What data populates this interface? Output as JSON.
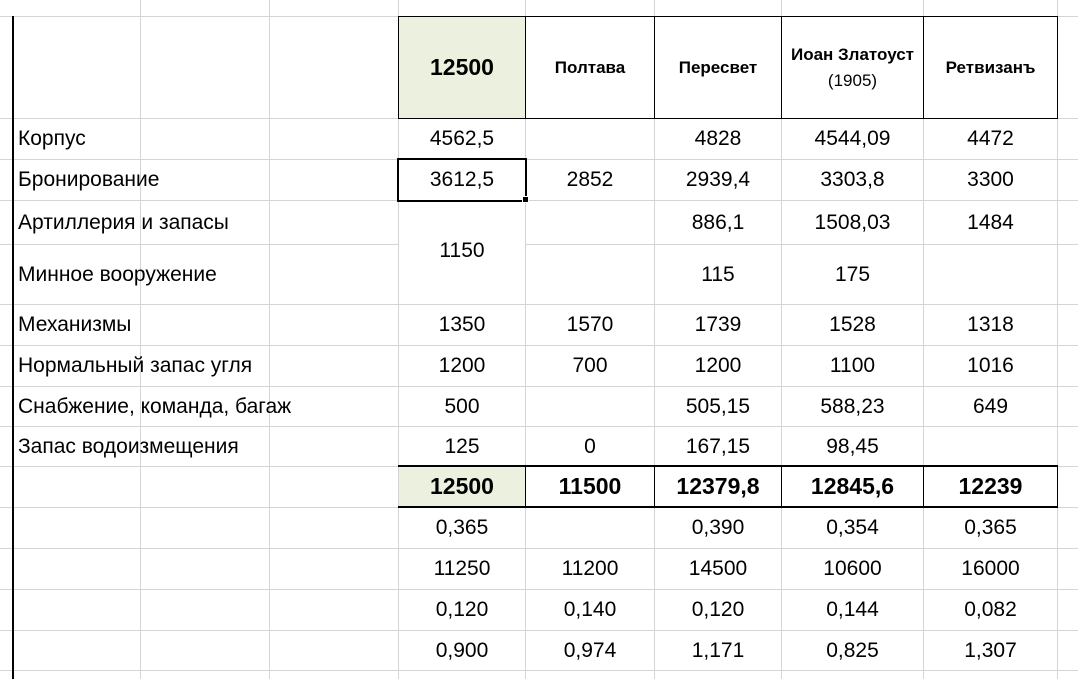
{
  "colors": {
    "gridline": "#d4d4d4",
    "highlight": "#ebf1de",
    "border": "#000000",
    "text": "#000000"
  },
  "header": {
    "col1": "12500",
    "col2": "Полтава",
    "col3": "Пересвет",
    "col4": "Иоан Златоуст",
    "col4_sub": "(1905)",
    "col5": "Ретвизанъ"
  },
  "rows": [
    {
      "label": "Корпус",
      "values": [
        "4562,5",
        "",
        "4828",
        "4544,09",
        "4472"
      ]
    },
    {
      "label": "Бронирование",
      "values": [
        "3612,5",
        "2852",
        "2939,4",
        "3303,8",
        "3300"
      ]
    },
    {
      "label": "Артиллерия и запасы",
      "values": [
        "",
        "",
        "886,1",
        "1508,03",
        "1484"
      ]
    },
    {
      "label": "Минное вооружение",
      "values": [
        "",
        "",
        "115",
        "175",
        ""
      ]
    },
    {
      "label": "Механизмы",
      "values": [
        "1350",
        "1570",
        "1739",
        "1528",
        "1318"
      ]
    },
    {
      "label": "Нормальный запас угля",
      "values": [
        "1200",
        "700",
        "1200",
        "1100",
        "1016"
      ]
    },
    {
      "label": "Снабжение, команда, багаж",
      "values": [
        "500",
        "",
        "505,15",
        "588,23",
        "649"
      ]
    },
    {
      "label": "Запас водоизмещения",
      "values": [
        "125",
        "0",
        "167,15",
        "98,45",
        ""
      ]
    }
  ],
  "merged_value": "1150",
  "totals": [
    "12500",
    "11500",
    "12379,8",
    "12845,6",
    "12239"
  ],
  "extra_rows": [
    [
      "0,365",
      "",
      "0,390",
      "0,354",
      "0,365"
    ],
    [
      "11250",
      "11200",
      "14500",
      "10600",
      "16000"
    ],
    [
      "0,120",
      "0,140",
      "0,120",
      "0,144",
      "0,082"
    ],
    [
      "0,900",
      "0,974",
      "1,171",
      "0,825",
      "1,307"
    ]
  ]
}
